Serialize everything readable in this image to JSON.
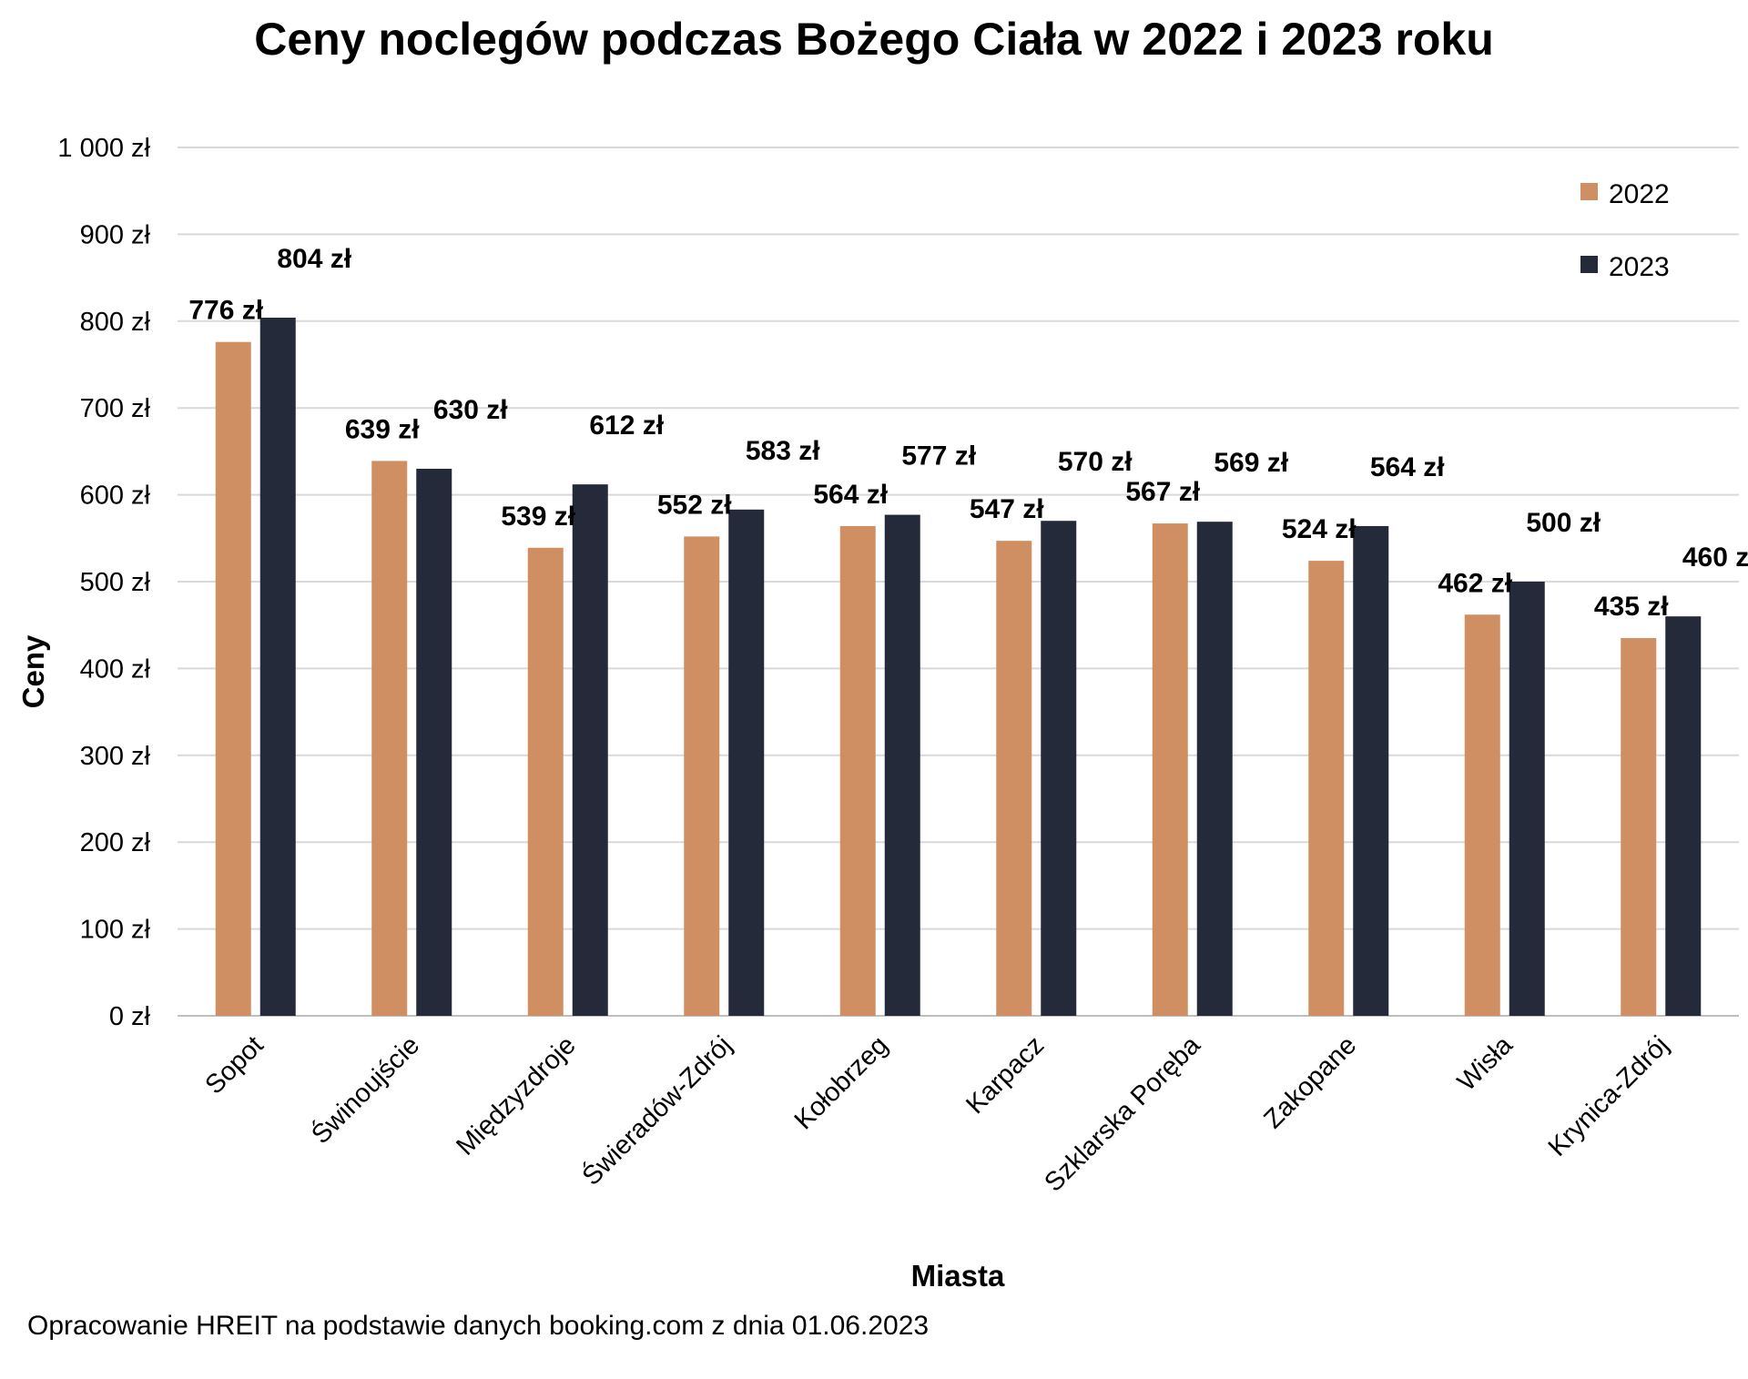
{
  "chart_data": {
    "type": "bar",
    "title": "Ceny noclegów podczas Bożego Ciała w 2022 i 2023 roku",
    "xlabel": "Miasta",
    "ylabel": "Ceny",
    "ylim": [
      0,
      1000
    ],
    "y_ticks": [
      0,
      100,
      200,
      300,
      400,
      500,
      600,
      700,
      800,
      900,
      1000
    ],
    "y_tick_labels": [
      "0 zł",
      "100 zł",
      "200 zł",
      "300 zł",
      "400 zł",
      "500 zł",
      "600 zł",
      "700 zł",
      "800 zł",
      "900 zł",
      "1 000 zł"
    ],
    "value_suffix": " zł",
    "grid": true,
    "legend_position": "top-right",
    "categories": [
      "Sopot",
      "Świnoujście",
      "Międzyzdroje",
      "Świeradów-Zdrój",
      "Kołobrzeg",
      "Karpacz",
      "Szklarska Poręba",
      "Zakopane",
      "Wisła",
      "Krynica-Zdrój"
    ],
    "series": [
      {
        "name": "2022",
        "color": "#D08F62",
        "values": [
          776,
          639,
          539,
          552,
          564,
          547,
          567,
          524,
          462,
          435
        ]
      },
      {
        "name": "2023",
        "color": "#252A3B",
        "values": [
          804,
          630,
          612,
          583,
          577,
          570,
          569,
          564,
          500,
          460
        ]
      }
    ],
    "source_note": "Opracowanie HREIT na podstawie danych booking.com z dnia 01.06.2023"
  }
}
